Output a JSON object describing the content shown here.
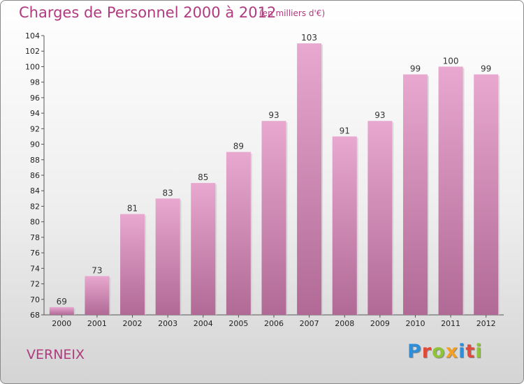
{
  "title": "Charges de Personnel 2000 à 2012",
  "unit": "(en milliers d'€)",
  "commune": "VERNEIX",
  "logo": {
    "letters": [
      {
        "char": "P",
        "color": "#2e8fd8"
      },
      {
        "char": "r",
        "color": "#e3493b"
      },
      {
        "char": "o",
        "color": "#8fc43a"
      },
      {
        "char": "x",
        "color": "#f2a024"
      },
      {
        "char": "i",
        "color": "#2e8fd8"
      },
      {
        "char": "t",
        "color": "#e3493b"
      },
      {
        "char": "i",
        "color": "#8fc43a"
      }
    ]
  },
  "colors": {
    "title": "#b03a7e",
    "bar_light": "#e8a8cf",
    "bar_dark": "#b06a95"
  },
  "chart_data": {
    "type": "bar",
    "categories": [
      "2000",
      "2001",
      "2002",
      "2003",
      "2004",
      "2005",
      "2006",
      "2007",
      "2008",
      "2009",
      "2010",
      "2011",
      "2012"
    ],
    "values": [
      69,
      73,
      81,
      83,
      85,
      89,
      93,
      103,
      91,
      93,
      99,
      100,
      99
    ],
    "title": "Charges de Personnel 2000 à 2012",
    "xlabel": "",
    "ylabel": "",
    "ylim": [
      68,
      104
    ],
    "yticks": [
      68,
      70,
      72,
      74,
      76,
      78,
      80,
      82,
      84,
      86,
      88,
      90,
      92,
      94,
      96,
      98,
      100,
      102,
      104
    ],
    "grid": false,
    "legend": "none"
  }
}
